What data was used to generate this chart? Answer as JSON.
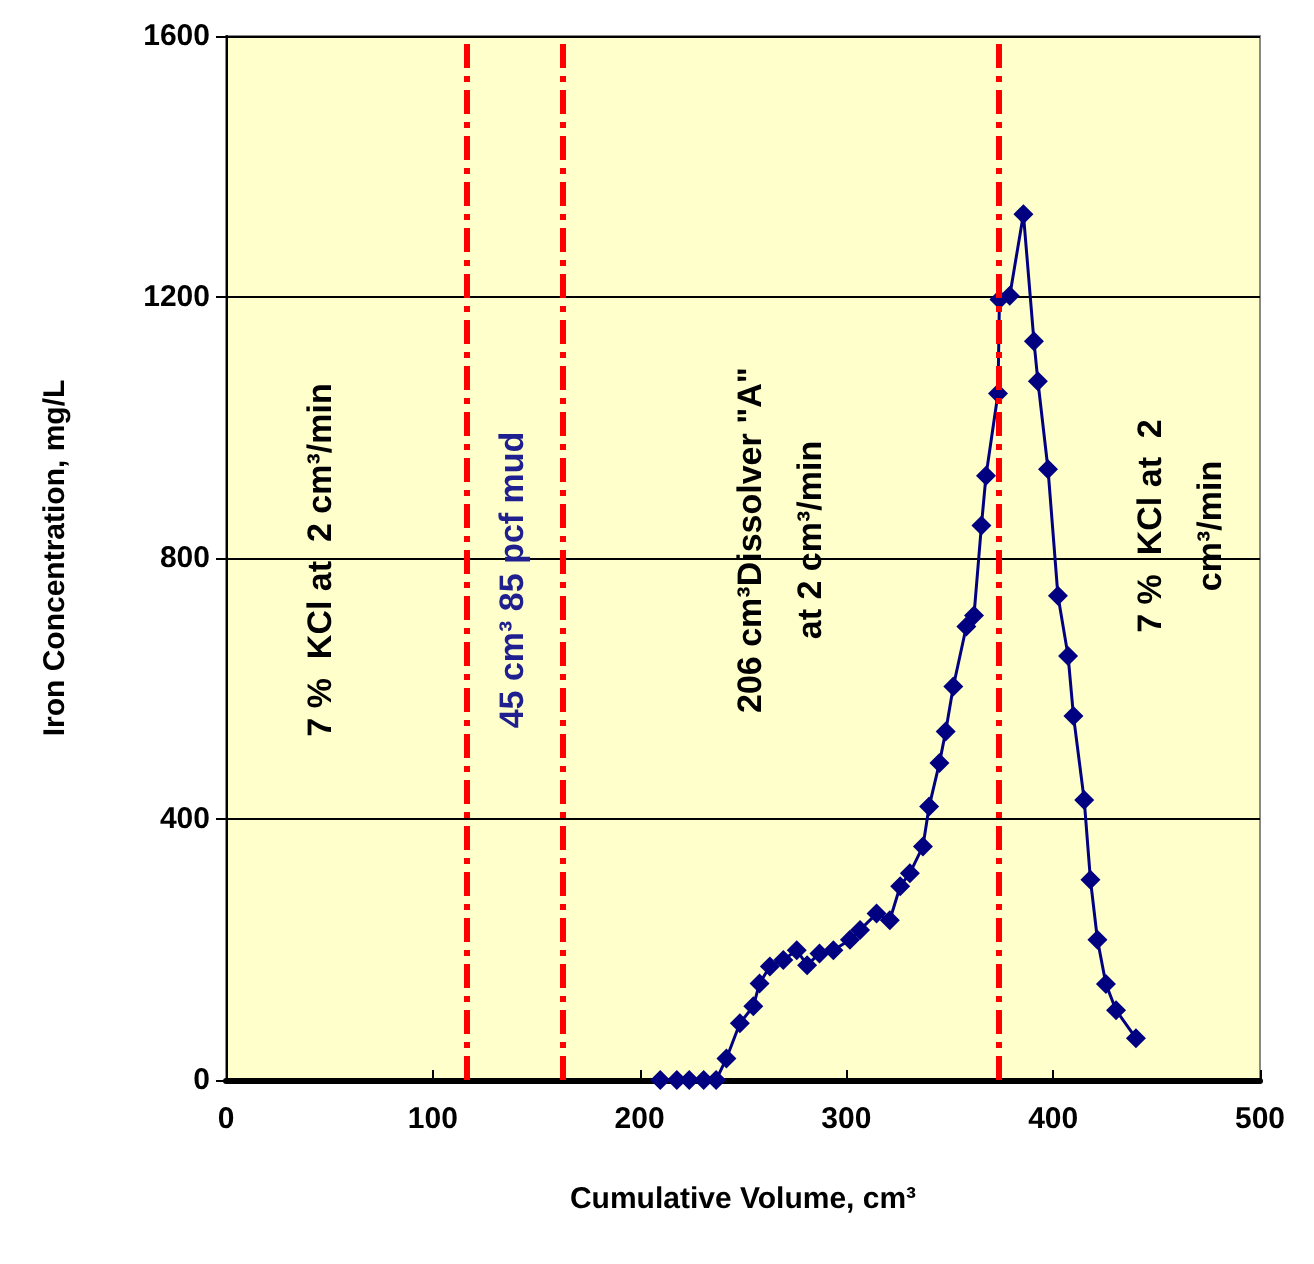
{
  "chart_data": {
    "type": "line",
    "xlabel": "Cumulative Volume, cm³",
    "ylabel": "Iron Concentration, mg/L",
    "x": [
      210,
      218,
      224,
      231,
      237,
      242,
      248.5,
      255,
      258,
      263,
      269.5,
      276,
      281,
      287,
      293.7,
      301.7,
      306.6,
      314.6,
      321,
      326,
      330.7,
      337,
      340,
      345,
      348,
      351.7,
      358,
      361.7,
      365.3,
      367.5,
      373.3,
      374,
      379,
      385.6,
      390.7,
      392.6,
      397.5,
      402.3,
      407.2,
      409.8,
      415,
      418,
      421.4,
      425.5,
      430.4,
      440
    ],
    "series": [
      {
        "color": "#000080",
        "values": [
          0,
          0,
          0,
          0,
          0,
          33,
          87,
          113,
          148,
          174,
          184,
          199,
          176,
          194,
          199,
          215,
          230,
          255,
          245,
          297,
          317,
          358,
          419,
          486,
          534,
          603,
          695,
          712,
          850,
          926,
          1052,
          1196,
          1202,
          1327,
          1132,
          1071,
          936,
          742,
          650,
          558,
          429,
          307,
          215,
          147,
          107,
          64
        ]
      }
    ],
    "xlim": [
      0,
      500
    ],
    "xticks": [
      0,
      100,
      200,
      300,
      400,
      500
    ],
    "ylim": [
      0,
      1600
    ],
    "yticks": [
      0,
      400,
      800,
      1200,
      1600
    ],
    "grid": "y",
    "marker": "diamond",
    "line_style": "solid",
    "ref_lines": [
      {
        "axis": "x",
        "value": 116,
        "color": "#ff0000",
        "line_style": "dashdot"
      },
      {
        "axis": "x",
        "value": 163,
        "color": "#ff0000",
        "line_style": "dashdot"
      },
      {
        "axis": "x",
        "value": 374,
        "color": "#ff0000",
        "line_style": "dashdot"
      }
    ],
    "annotations": [
      "7 %  KCl at  2 cm³/min",
      "45 cm³ 85 pcf mud",
      "206 cm³Dissolver \"A\"\nat 2 cm³/min",
      "7 %  KCl at  2\ncm³/min"
    ]
  }
}
